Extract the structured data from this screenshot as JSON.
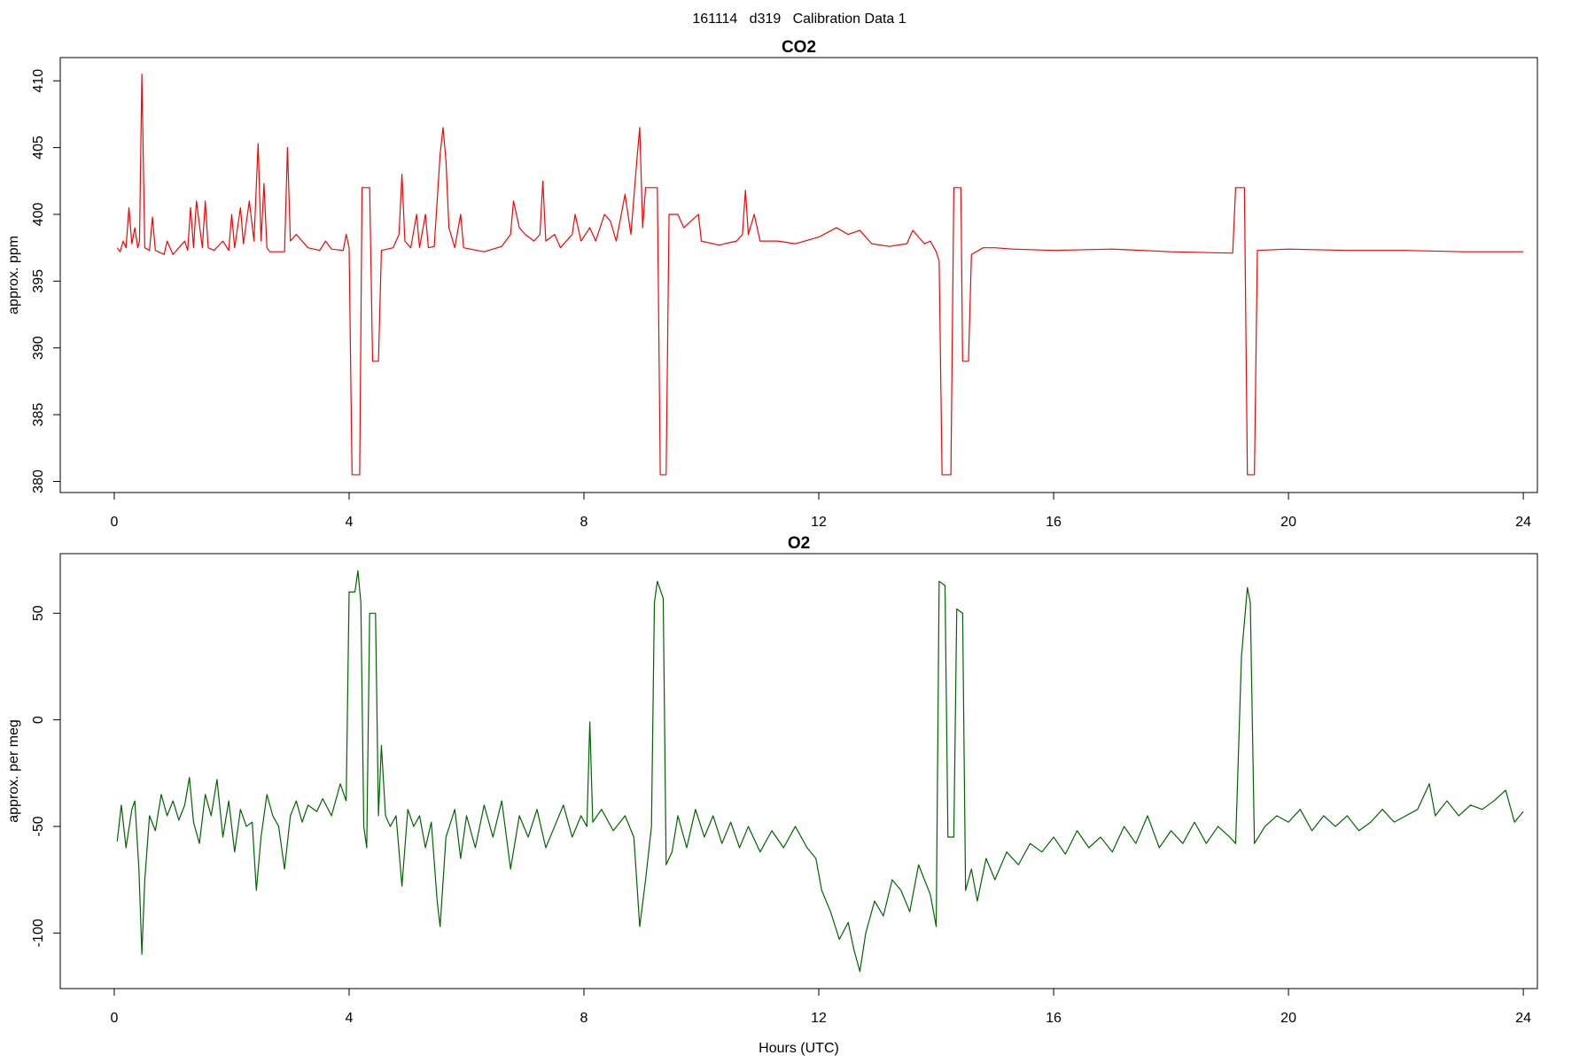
{
  "title": "161114   d319   Calibration Data 1",
  "chart_data": [
    {
      "type": "line",
      "title": "CO2",
      "y_label": "approx. ppm",
      "xlim": [
        -0.92,
        24.24
      ],
      "xticks": [
        0,
        4,
        8,
        12,
        16,
        20,
        24
      ],
      "ylim": [
        379.17,
        411.74
      ],
      "yticks": [
        380,
        385,
        390,
        395,
        400,
        405,
        410
      ],
      "x": [
        0.05,
        0.1,
        0.15,
        0.2,
        0.25,
        0.3,
        0.35,
        0.4,
        0.43,
        0.47,
        0.52,
        0.6,
        0.65,
        0.7,
        0.85,
        0.9,
        1.0,
        1.1,
        1.2,
        1.25,
        1.3,
        1.35,
        1.4,
        1.5,
        1.55,
        1.6,
        1.7,
        1.85,
        1.95,
        2.0,
        2.05,
        2.15,
        2.2,
        2.3,
        2.38,
        2.45,
        2.5,
        2.55,
        2.6,
        2.65,
        2.9,
        2.95,
        3.0,
        3.1,
        3.3,
        3.5,
        3.6,
        3.7,
        3.9,
        3.95,
        4.0,
        4.05,
        4.18,
        4.22,
        4.35,
        4.4,
        4.5,
        4.55,
        4.75,
        4.85,
        4.9,
        4.95,
        5.05,
        5.15,
        5.2,
        5.3,
        5.35,
        5.45,
        5.5,
        5.55,
        5.6,
        5.65,
        5.7,
        5.8,
        5.9,
        5.95,
        6.3,
        6.6,
        6.75,
        6.8,
        6.9,
        7.0,
        7.15,
        7.25,
        7.3,
        7.35,
        7.5,
        7.6,
        7.8,
        7.85,
        7.95,
        8.1,
        8.2,
        8.35,
        8.45,
        8.55,
        8.7,
        8.8,
        8.9,
        8.95,
        9.0,
        9.05,
        9.25,
        9.3,
        9.4,
        9.45,
        9.6,
        9.7,
        9.95,
        10.0,
        10.3,
        10.6,
        10.7,
        10.75,
        10.8,
        10.9,
        11.0,
        11.3,
        11.6,
        12.0,
        12.3,
        12.5,
        12.7,
        12.9,
        13.2,
        13.5,
        13.6,
        13.8,
        13.9,
        14.0,
        14.05,
        14.1,
        14.25,
        14.3,
        14.42,
        14.45,
        14.55,
        14.6,
        14.8,
        15.0,
        15.3,
        16,
        17,
        18,
        19,
        19.05,
        19.1,
        19.25,
        19.3,
        19.42,
        19.47,
        20,
        21,
        22,
        23,
        24
      ],
      "series": [
        {
          "color": "#ff0000",
          "values": [
            397.5,
            397.2,
            398,
            397.5,
            400.5,
            397.8,
            399,
            397.5,
            398,
            410.5,
            397.5,
            397.3,
            399.8,
            397.3,
            397,
            398,
            397,
            397.5,
            398,
            397.3,
            400.5,
            397.5,
            401,
            397.5,
            401,
            397.5,
            397.3,
            398,
            397.3,
            400,
            397.5,
            400.5,
            397.8,
            401,
            398,
            405.3,
            398,
            402.3,
            397.5,
            397.2,
            397.2,
            405,
            398,
            398.5,
            397.5,
            397.3,
            398,
            397.4,
            397.3,
            398.5,
            397.5,
            380.5,
            380.5,
            402,
            402,
            389,
            389,
            397.3,
            397.5,
            398.5,
            403,
            398,
            397.5,
            400,
            397.5,
            400,
            397.5,
            397.6,
            401,
            404.5,
            406.5,
            404,
            399,
            397.5,
            400,
            397.5,
            397.2,
            397.6,
            398.5,
            401,
            399,
            398.5,
            398,
            398.5,
            402.5,
            398,
            398.5,
            397.5,
            398.5,
            400,
            398,
            399,
            398,
            400,
            399.5,
            398,
            401.5,
            398.5,
            404,
            406.5,
            399,
            402,
            402,
            380.5,
            380.5,
            400,
            400,
            399,
            400,
            398,
            397.7,
            398,
            398.5,
            401.8,
            398.5,
            400,
            398,
            398,
            397.8,
            398.3,
            399,
            398.5,
            398.8,
            397.8,
            397.6,
            397.8,
            398.8,
            397.8,
            398,
            397.2,
            396.5,
            380.5,
            380.5,
            402,
            402,
            389,
            389,
            397,
            397.5,
            397.5,
            397.4,
            397.3,
            397.4,
            397.2,
            397.1,
            397.1,
            402,
            402,
            380.5,
            380.5,
            397.3,
            397.4,
            397.3,
            397.3,
            397.2,
            397.2
          ]
        }
      ]
    },
    {
      "type": "line",
      "title": "O2",
      "y_label": "approx. per meg",
      "x_label": "Hours (UTC)",
      "xlim": [
        -0.92,
        24.24
      ],
      "xticks": [
        0,
        4,
        8,
        12,
        16,
        20,
        24
      ],
      "ylim": [
        -126.07,
        77.96
      ],
      "yticks": [
        -100,
        -50,
        0,
        50
      ],
      "x": [
        0.05,
        0.12,
        0.2,
        0.3,
        0.35,
        0.42,
        0.47,
        0.52,
        0.6,
        0.7,
        0.8,
        0.9,
        1.0,
        1.1,
        1.2,
        1.28,
        1.35,
        1.45,
        1.55,
        1.65,
        1.75,
        1.85,
        1.95,
        2.05,
        2.15,
        2.25,
        2.35,
        2.42,
        2.5,
        2.6,
        2.7,
        2.8,
        2.9,
        3.0,
        3.1,
        3.2,
        3.3,
        3.45,
        3.55,
        3.7,
        3.85,
        3.95,
        4.0,
        4.1,
        4.15,
        4.2,
        4.25,
        4.3,
        4.35,
        4.45,
        4.5,
        4.55,
        4.62,
        4.7,
        4.8,
        4.9,
        5.0,
        5.1,
        5.2,
        5.3,
        5.4,
        5.5,
        5.55,
        5.65,
        5.8,
        5.9,
        6.0,
        6.15,
        6.3,
        6.45,
        6.6,
        6.75,
        6.9,
        7.05,
        7.2,
        7.35,
        7.5,
        7.65,
        7.8,
        7.95,
        8.05,
        8.1,
        8.15,
        8.3,
        8.5,
        8.7,
        8.85,
        8.95,
        9.05,
        9.15,
        9.2,
        9.25,
        9.35,
        9.4,
        9.5,
        9.6,
        9.75,
        9.9,
        10.05,
        10.2,
        10.35,
        10.5,
        10.65,
        10.8,
        11.0,
        11.2,
        11.4,
        11.6,
        11.8,
        11.95,
        12.05,
        12.2,
        12.35,
        12.5,
        12.6,
        12.7,
        12.8,
        12.95,
        13.1,
        13.25,
        13.4,
        13.55,
        13.7,
        13.8,
        13.9,
        14.0,
        14.05,
        14.15,
        14.2,
        14.3,
        14.35,
        14.45,
        14.5,
        14.6,
        14.7,
        14.85,
        15.0,
        15.2,
        15.4,
        15.6,
        15.8,
        16.0,
        16.2,
        16.4,
        16.6,
        16.8,
        17.0,
        17.2,
        17.4,
        17.6,
        17.8,
        18.0,
        18.2,
        18.4,
        18.6,
        18.8,
        19.0,
        19.1,
        19.2,
        19.3,
        19.35,
        19.42,
        19.6,
        19.8,
        20.0,
        20.2,
        20.4,
        20.6,
        20.8,
        21.0,
        21.2,
        21.4,
        21.6,
        21.8,
        22.0,
        22.2,
        22.4,
        22.5,
        22.7,
        22.9,
        23.1,
        23.3,
        23.5,
        23.7,
        23.85,
        24.0
      ],
      "series": [
        {
          "color": "#006400",
          "values": [
            -57,
            -40,
            -60,
            -42,
            -38,
            -70,
            -110,
            -75,
            -45,
            -52,
            -35,
            -45,
            -38,
            -47,
            -40,
            -27,
            -48,
            -58,
            -35,
            -45,
            -28,
            -55,
            -38,
            -62,
            -42,
            -50,
            -48,
            -80,
            -55,
            -35,
            -45,
            -50,
            -70,
            -45,
            -38,
            -48,
            -40,
            -43,
            -37,
            -45,
            -30,
            -38,
            60,
            60,
            70,
            55,
            -50,
            -60,
            50,
            50,
            -45,
            -12,
            -45,
            -50,
            -45,
            -78,
            -42,
            -50,
            -45,
            -60,
            -48,
            -85,
            -97,
            -55,
            -42,
            -65,
            -45,
            -60,
            -40,
            -55,
            -38,
            -70,
            -45,
            -55,
            -42,
            -60,
            -50,
            -40,
            -55,
            -45,
            -50,
            -1,
            -48,
            -42,
            -52,
            -45,
            -55,
            -97,
            -75,
            -50,
            55,
            65,
            57,
            -68,
            -62,
            -45,
            -60,
            -42,
            -55,
            -45,
            -58,
            -48,
            -60,
            -50,
            -62,
            -52,
            -60,
            -50,
            -60,
            -65,
            -80,
            -90,
            -103,
            -95,
            -108,
            -118,
            -100,
            -85,
            -92,
            -75,
            -80,
            -90,
            -68,
            -75,
            -82,
            -97,
            65,
            63,
            -55,
            -55,
            52,
            50,
            -80,
            -70,
            -85,
            -65,
            -75,
            -62,
            -68,
            -58,
            -62,
            -55,
            -63,
            -52,
            -60,
            -55,
            -62,
            -50,
            -58,
            -45,
            -60,
            -52,
            -58,
            -48,
            -58,
            -50,
            -55,
            -58,
            30,
            62,
            55,
            -58,
            -50,
            -45,
            -48,
            -42,
            -52,
            -45,
            -50,
            -45,
            -52,
            -48,
            -42,
            -48,
            -45,
            -42,
            -30,
            -45,
            -38,
            -45,
            -40,
            -42,
            -38,
            -33,
            -48,
            -43
          ]
        }
      ]
    }
  ]
}
